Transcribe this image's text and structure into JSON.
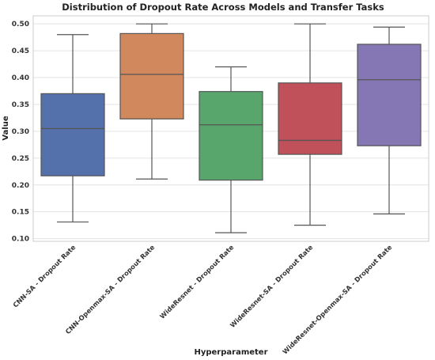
{
  "chart_data": {
    "type": "box",
    "title": "Distribution of Dropout Rate Across Models and Transfer Tasks",
    "xlabel": "Hyperparameter",
    "ylabel": "Value",
    "ylim": [
      0.095,
      0.515
    ],
    "yticks": [
      "0.10",
      "0.15",
      "0.20",
      "0.25",
      "0.30",
      "0.35",
      "0.40",
      "0.45",
      "0.50"
    ],
    "grid": true,
    "categories": [
      "CNN-SA - Dropout Rate",
      "CNN-Openmax-SA - Dropout Rate",
      "WideResnet - Dropout Rate",
      "WideResnet-SA - Dropout Rate",
      "WideResnet-Openmax-SA - Dropout Rate"
    ],
    "boxes": [
      {
        "min": 0.131,
        "q1": 0.217,
        "median": 0.305,
        "q3": 0.37,
        "max": 0.48,
        "color": "#5471AB"
      },
      {
        "min": 0.211,
        "q1": 0.323,
        "median": 0.406,
        "q3": 0.482,
        "max": 0.5,
        "color": "#D1885C"
      },
      {
        "min": 0.111,
        "q1": 0.209,
        "median": 0.312,
        "q3": 0.374,
        "max": 0.42,
        "color": "#59A66C"
      },
      {
        "min": 0.125,
        "q1": 0.257,
        "median": 0.283,
        "q3": 0.39,
        "max": 0.5,
        "color": "#C0505A"
      },
      {
        "min": 0.146,
        "q1": 0.273,
        "median": 0.396,
        "q3": 0.462,
        "max": 0.494,
        "color": "#8576B4"
      }
    ]
  }
}
